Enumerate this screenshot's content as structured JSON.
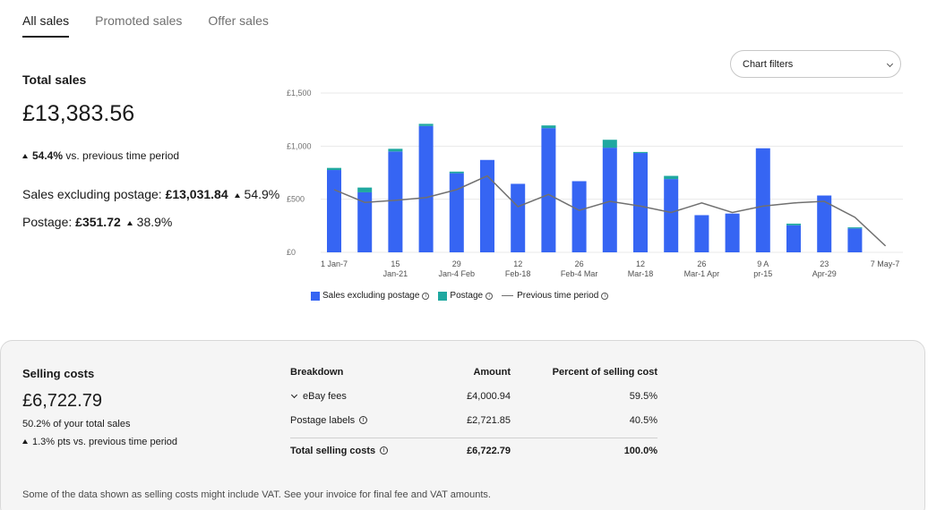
{
  "tabs": [
    {
      "label": "All sales",
      "active": true
    },
    {
      "label": "Promoted sales",
      "active": false
    },
    {
      "label": "Offer sales",
      "active": false
    }
  ],
  "summary": {
    "title": "Total sales",
    "value": "£13,383.56",
    "delta_pct": "54.4%",
    "delta_text": "vs. previous time period",
    "sales_excl_label": "Sales excluding postage:",
    "sales_excl_value": "£13,031.84",
    "sales_excl_delta": "54.9%",
    "postage_label": "Postage:",
    "postage_value": "£351.72",
    "postage_delta": "38.9%"
  },
  "chart_filters": {
    "label": "Chart filters"
  },
  "chart_data": {
    "type": "bar",
    "stacked": true,
    "colors": {
      "sales": "#3665f3",
      "postage": "#1fa8a0",
      "previous": "#707070",
      "grid": "#e9e9e9"
    },
    "ylim": [
      0,
      1500
    ],
    "yticks": [
      {
        "v": 0,
        "label": "£0"
      },
      {
        "v": 500,
        "label": "£500"
      },
      {
        "v": 1000,
        "label": "£1,000"
      },
      {
        "v": 1500,
        "label": "£1,500"
      }
    ],
    "xticks": [
      {
        "l1": "1 Jan-7",
        "l2": ""
      },
      {
        "l1": "15",
        "l2": "Jan-21"
      },
      {
        "l1": "29",
        "l2": "Jan-4 Feb"
      },
      {
        "l1": "12",
        "l2": "Feb-18"
      },
      {
        "l1": "26",
        "l2": "Feb-4 Mar"
      },
      {
        "l1": "12",
        "l2": "Mar-18"
      },
      {
        "l1": "26",
        "l2": "Mar-1 Apr"
      },
      {
        "l1": "9 A",
        "l2": "pr-15"
      },
      {
        "l1": "23",
        "l2": "Apr-29"
      },
      {
        "l1": "7 May-7",
        "l2": ""
      }
    ],
    "series": [
      {
        "name": "Sales excluding postage",
        "values": [
          775,
          565,
          950,
          1190,
          745,
          870,
          645,
          1170,
          670,
          985,
          935,
          690,
          350,
          365,
          980,
          255,
          535,
          225,
          0
        ]
      },
      {
        "name": "Postage",
        "values": [
          20,
          45,
          25,
          20,
          15,
          0,
          0,
          25,
          0,
          75,
          10,
          30,
          0,
          0,
          0,
          15,
          0,
          10,
          0
        ]
      },
      {
        "name": "Previous time period",
        "values": [
          590,
          470,
          490,
          515,
          590,
          720,
          430,
          545,
          395,
          480,
          435,
          375,
          465,
          375,
          435,
          465,
          480,
          330,
          60
        ]
      }
    ]
  },
  "selling_costs": {
    "title": "Selling costs",
    "value": "£6,722.79",
    "pct_text": "50.2% of your total sales",
    "delta_pts": "1.3% pts",
    "delta_text": "vs. previous time period",
    "headers": {
      "breakdown": "Breakdown",
      "amount": "Amount",
      "percent": "Percent of selling cost"
    },
    "rows": [
      {
        "label": "eBay fees",
        "amount": "£4,000.94",
        "percent": "59.5%"
      },
      {
        "label": "Postage labels",
        "amount": "£2,721.85",
        "percent": "40.5%"
      }
    ],
    "total": {
      "label": "Total selling costs",
      "amount": "£6,722.79",
      "percent": "100.0%"
    },
    "footnote": "Some of the data shown as selling costs might include VAT. See your invoice for final fee and VAT amounts."
  }
}
